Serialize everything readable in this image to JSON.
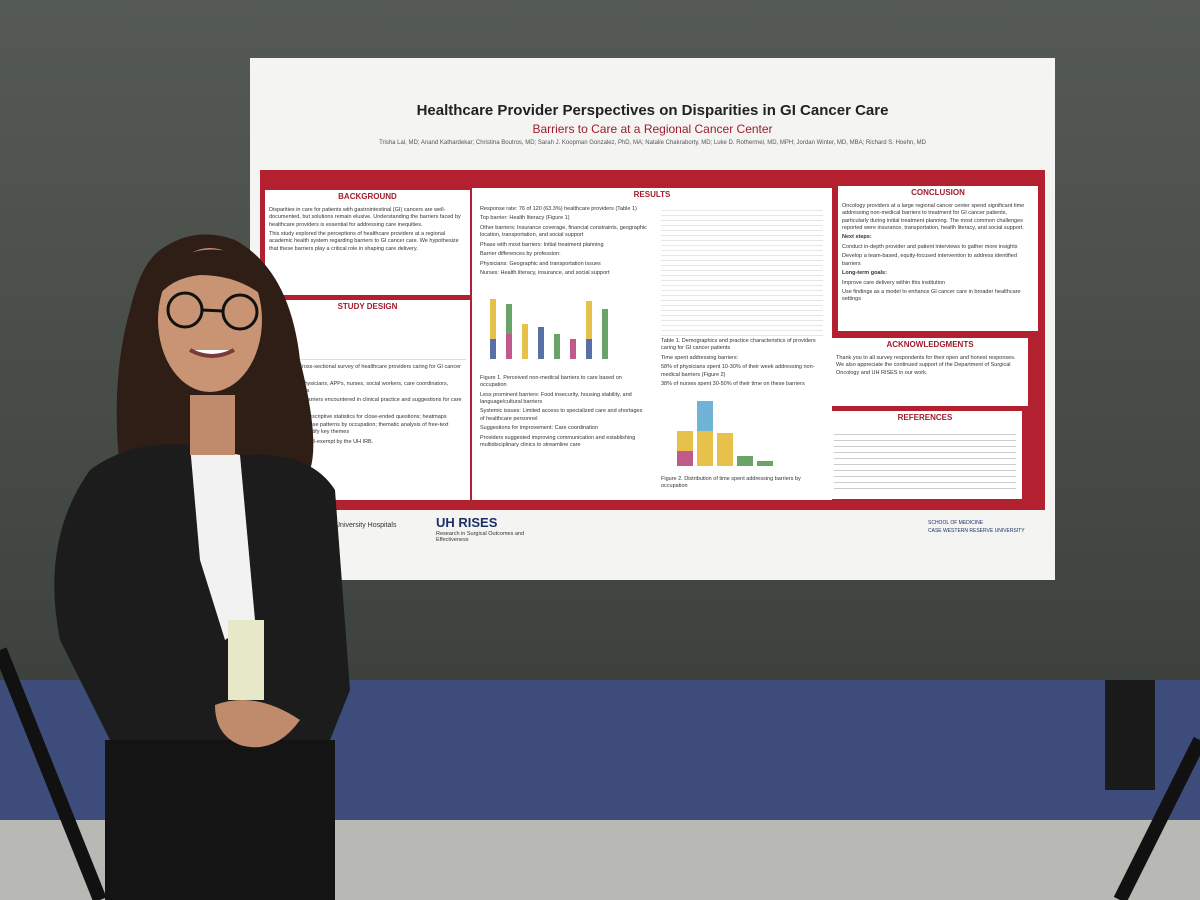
{
  "poster": {
    "title": "Healthcare Provider Perspectives on Disparities in GI Cancer Care",
    "subtitle": "Barriers to Care at a Regional Cancer Center",
    "authors": "Trisha Lal, MD; Anand Kathardekar; Christina Boutros, MD; Sarah J. Koopman Gonzalez, PhD, MA; Natalie Chakraborty, MD; Luke D. Rothermel, MD, MPH; Jordan Winter, MD, MBA; Richard S. Hoehn, MD",
    "background": {
      "heading": "BACKGROUND",
      "paragraphs": [
        "Disparities in care for patients with gastrointestinal (GI) cancers are well-documented, but solutions remain elusive. Understanding the barriers faced by healthcare providers is essential for addressing care inequities.",
        "This study explored the perceptions of healthcare providers at a regional academic health system regarding barriers to GI cancer care. We hypothesize that these barriers play a critical role in shaping care delivery."
      ]
    },
    "study_design": {
      "heading": "STUDY DESIGN",
      "items": [
        "Study type: Cross-sectional survey of healthcare providers caring for GI cancer patients",
        "Participants: Physicians, APPs, nurses, social workers, care coordinators, PT/OT, dietitians",
        "Survey focus: Barriers encountered in clinical practice and suggestions for care improvement",
        "Data analysis: Descriptive statistics for close-ended questions; heatmaps visualizing response patterns by occupation; thematic analysis of free-text responses to identify key themes",
        "Study deemed IRB-exempt by the UH IRB."
      ]
    },
    "results": {
      "heading": "RESULTS",
      "left": [
        "Response rate: 76 of 120 (63.3%) healthcare providers (Table 1)",
        "Top barrier: Health literacy (Figure 1)",
        "Other barriers: Insurance coverage, financial constraints, geographic location, transportation, and social support",
        "Phase with most barriers: Initial treatment planning",
        "Barrier differences by profession:",
        "Physicians: Geographic and transportation issues",
        "Nurses: Health literacy, insurance, and social support"
      ],
      "figure1": "Figure 1. Perceived non-medical barriers to care based on occupation",
      "left_lower": [
        "Less prominent barriers: Food insecurity, housing stability, and language/cultural barriers",
        "Systemic issues: Limited access to specialized care and shortages of healthcare personnel",
        "Suggestions for improvement: Care coordination",
        "Providers suggested improving communication and establishing multidisciplinary clinics to streamline care"
      ],
      "table1": "Table 1. Demographics and practice characteristics of providers caring for GI cancer patients",
      "right": [
        "Time spent addressing barriers:",
        "58% of physicians spent 10-30% of their week addressing non-medical barriers (Figure 2)",
        "38% of nurses spent 30-50% of their time on these barriers"
      ],
      "figure2": "Figure 2. Distribution of time spent addressing barriers by occupation"
    },
    "conclusion": {
      "heading": "CONCLUSION",
      "text": "Oncology providers at a large regional cancer center spend significant time addressing non-medical barriers to treatment for GI cancer patients, particularly during initial treatment planning. The most common challenges reported were insurance, transportation, health literacy, and social support.",
      "items": [
        "Next steps:",
        "Conduct in-depth provider and patient interviews to gather more insights",
        "Develop a team-based, equity-focused intervention to address identified barriers",
        "Long-term goals:",
        "Improve care delivery within this institution",
        "Use findings as a model to enhance GI cancer care in broader healthcare settings"
      ]
    },
    "acknowledgments": {
      "heading": "ACKNOWLEDGMENTS",
      "text": "Thank you to all survey respondents for their open and honest responses. We also appreciate the continued support of the Department of Surgical Oncology and UH RISES in our work."
    },
    "references": {
      "heading": "REFERENCES"
    },
    "logos": {
      "hospital": "University Hospitals",
      "rises": "UH RISES",
      "rises_sub": "Research in Surgical Outcomes and Effectiveness",
      "school": "SCHOOL OF MEDICINE",
      "university": "CASE WESTERN RESERVE UNIVERSITY"
    }
  }
}
